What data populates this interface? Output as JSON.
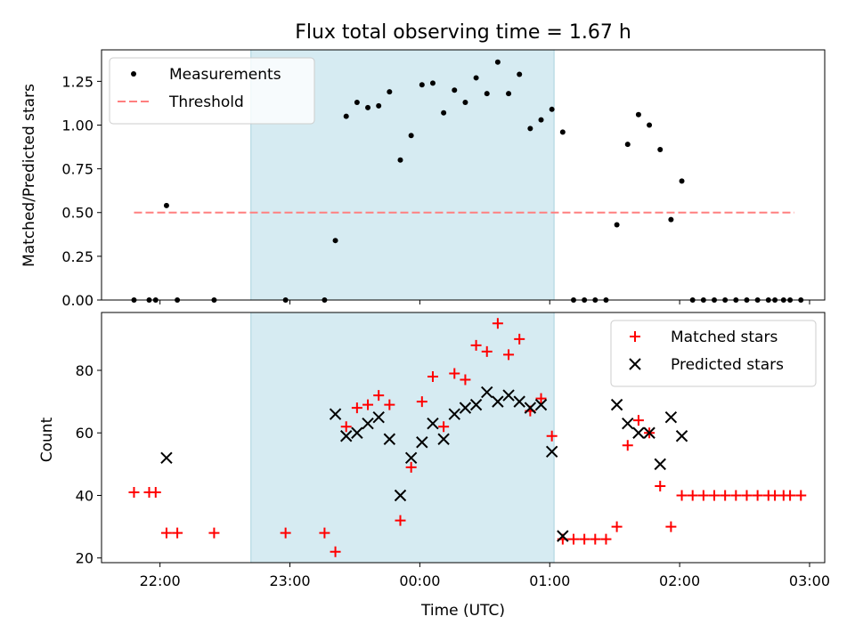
{
  "chart_data": [
    {
      "type": "scatter",
      "title": "Flux total observing time = 1.67 h",
      "ylabel": "Matched/Predicted stars",
      "xlim": [
        "21:33",
        "03:07"
      ],
      "ylim": [
        0,
        1.43
      ],
      "yticks": [
        "0.00",
        "0.25",
        "0.50",
        "0.75",
        "1.00",
        "1.25"
      ],
      "shaded_interval": [
        "22:42",
        "01:02"
      ],
      "shade_color": "#add8e6",
      "threshold": {
        "value": 0.5,
        "x_start": "21:48",
        "x_end": "02:53",
        "color": "#ff7f7f"
      },
      "legend": {
        "position": "top-left",
        "items": [
          "Measurements",
          "Threshold"
        ]
      },
      "series": [
        {
          "name": "Measurements",
          "marker": "dot",
          "color": "#000000",
          "points": [
            [
              "21:48",
              0.0
            ],
            [
              "21:55",
              0.0
            ],
            [
              "21:58",
              0.0
            ],
            [
              "22:03",
              0.54
            ],
            [
              "22:08",
              0.0
            ],
            [
              "22:25",
              0.0
            ],
            [
              "22:58",
              0.0
            ],
            [
              "23:16",
              0.0
            ],
            [
              "23:21",
              0.34
            ],
            [
              "23:26",
              1.05
            ],
            [
              "23:31",
              1.13
            ],
            [
              "23:36",
              1.1
            ],
            [
              "23:41",
              1.11
            ],
            [
              "23:46",
              1.19
            ],
            [
              "23:51",
              0.8
            ],
            [
              "23:56",
              0.94
            ],
            [
              "00:01",
              1.23
            ],
            [
              "00:06",
              1.24
            ],
            [
              "00:11",
              1.07
            ],
            [
              "00:16",
              1.2
            ],
            [
              "00:21",
              1.13
            ],
            [
              "00:26",
              1.27
            ],
            [
              "00:31",
              1.18
            ],
            [
              "00:36",
              1.36
            ],
            [
              "00:41",
              1.18
            ],
            [
              "00:46",
              1.29
            ],
            [
              "00:51",
              0.98
            ],
            [
              "00:56",
              1.03
            ],
            [
              "01:01",
              1.09
            ],
            [
              "01:06",
              0.96
            ],
            [
              "01:11",
              0.0
            ],
            [
              "01:16",
              0.0
            ],
            [
              "01:21",
              0.0
            ],
            [
              "01:26",
              0.0
            ],
            [
              "01:31",
              0.43
            ],
            [
              "01:36",
              0.89
            ],
            [
              "01:41",
              1.06
            ],
            [
              "01:46",
              1.0
            ],
            [
              "01:51",
              0.86
            ],
            [
              "01:56",
              0.46
            ],
            [
              "02:01",
              0.68
            ],
            [
              "02:06",
              0.0
            ],
            [
              "02:11",
              0.0
            ],
            [
              "02:16",
              0.0
            ],
            [
              "02:21",
              0.0
            ],
            [
              "02:26",
              0.0
            ],
            [
              "02:31",
              0.0
            ],
            [
              "02:36",
              0.0
            ],
            [
              "02:41",
              0.0
            ],
            [
              "02:44",
              0.0
            ],
            [
              "02:48",
              0.0
            ],
            [
              "02:51",
              0.0
            ],
            [
              "02:56",
              0.0
            ]
          ]
        }
      ]
    },
    {
      "type": "scatter",
      "xlabel": "Time (UTC)",
      "ylabel": "Count",
      "xlim": [
        "21:33",
        "03:07"
      ],
      "ylim": [
        18.5,
        98.5
      ],
      "xticks": [
        "22:00",
        "23:00",
        "00:00",
        "01:00",
        "02:00",
        "03:00"
      ],
      "yticks": [
        "20",
        "40",
        "60",
        "80"
      ],
      "shaded_interval": [
        "22:42",
        "01:02"
      ],
      "shade_color": "#add8e6",
      "legend": {
        "position": "top-right",
        "items": [
          "Matched stars",
          "Predicted stars"
        ]
      },
      "series": [
        {
          "name": "Matched stars",
          "marker": "plus",
          "color": "#ff0000",
          "points": [
            [
              "21:48",
              41
            ],
            [
              "21:55",
              41
            ],
            [
              "21:58",
              41
            ],
            [
              "22:03",
              28
            ],
            [
              "22:08",
              28
            ],
            [
              "22:25",
              28
            ],
            [
              "22:58",
              28
            ],
            [
              "23:16",
              28
            ],
            [
              "23:21",
              22
            ],
            [
              "23:26",
              62
            ],
            [
              "23:31",
              68
            ],
            [
              "23:36",
              69
            ],
            [
              "23:41",
              72
            ],
            [
              "23:46",
              69
            ],
            [
              "23:51",
              32
            ],
            [
              "23:56",
              49
            ],
            [
              "00:01",
              70
            ],
            [
              "00:06",
              78
            ],
            [
              "00:11",
              62
            ],
            [
              "00:16",
              79
            ],
            [
              "00:21",
              77
            ],
            [
              "00:26",
              88
            ],
            [
              "00:31",
              86
            ],
            [
              "00:36",
              95
            ],
            [
              "00:41",
              85
            ],
            [
              "00:46",
              90
            ],
            [
              "00:51",
              67
            ],
            [
              "00:56",
              71
            ],
            [
              "01:01",
              59
            ],
            [
              "01:06",
              26
            ],
            [
              "01:11",
              26
            ],
            [
              "01:16",
              26
            ],
            [
              "01:21",
              26
            ],
            [
              "01:26",
              26
            ],
            [
              "01:31",
              30
            ],
            [
              "01:36",
              56
            ],
            [
              "01:41",
              64
            ],
            [
              "01:46",
              60
            ],
            [
              "01:51",
              43
            ],
            [
              "01:56",
              30
            ],
            [
              "02:01",
              40
            ],
            [
              "02:06",
              40
            ],
            [
              "02:11",
              40
            ],
            [
              "02:16",
              40
            ],
            [
              "02:21",
              40
            ],
            [
              "02:26",
              40
            ],
            [
              "02:31",
              40
            ],
            [
              "02:36",
              40
            ],
            [
              "02:41",
              40
            ],
            [
              "02:44",
              40
            ],
            [
              "02:48",
              40
            ],
            [
              "02:51",
              40
            ],
            [
              "02:56",
              40
            ]
          ]
        },
        {
          "name": "Predicted stars",
          "marker": "x",
          "color": "#000000",
          "points": [
            [
              "22:03",
              52
            ],
            [
              "23:21",
              66
            ],
            [
              "23:26",
              59
            ],
            [
              "23:31",
              60
            ],
            [
              "23:36",
              63
            ],
            [
              "23:41",
              65
            ],
            [
              "23:46",
              58
            ],
            [
              "23:51",
              40
            ],
            [
              "23:56",
              52
            ],
            [
              "00:01",
              57
            ],
            [
              "00:06",
              63
            ],
            [
              "00:11",
              58
            ],
            [
              "00:16",
              66
            ],
            [
              "00:21",
              68
            ],
            [
              "00:26",
              69
            ],
            [
              "00:31",
              73
            ],
            [
              "00:36",
              70
            ],
            [
              "00:41",
              72
            ],
            [
              "00:46",
              70
            ],
            [
              "00:51",
              68
            ],
            [
              "00:56",
              69
            ],
            [
              "01:01",
              54
            ],
            [
              "01:06",
              27
            ],
            [
              "01:31",
              69
            ],
            [
              "01:36",
              63
            ],
            [
              "01:41",
              60
            ],
            [
              "01:46",
              60
            ],
            [
              "01:51",
              50
            ],
            [
              "01:56",
              65
            ],
            [
              "02:01",
              59
            ]
          ]
        }
      ]
    }
  ]
}
